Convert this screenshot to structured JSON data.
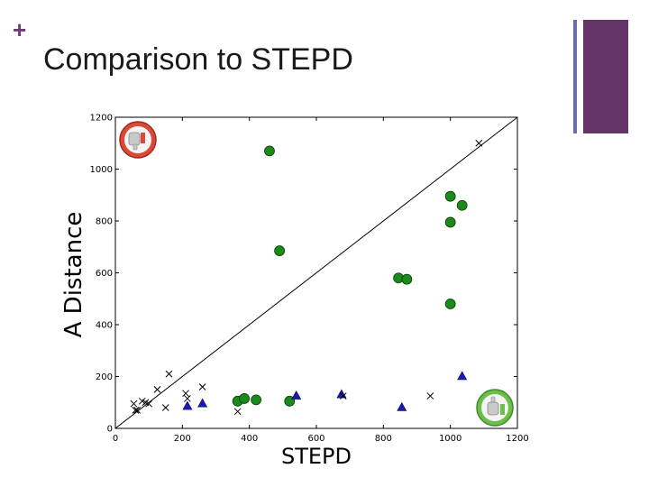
{
  "slide": {
    "plus_sign": "+",
    "title": "Comparison to STEPD"
  },
  "colors": {
    "accent_purple": "#643466",
    "accent_blue": "#6b6fa8",
    "green": "#1a8a1a",
    "blue": "#1a1ab4",
    "thumbs_down_badge": "#d94a38",
    "thumbs_up_badge": "#6cc04a"
  },
  "icons": {
    "top_left": "thumbs-down-icon",
    "bottom_right": "thumbs-up-icon"
  },
  "chart_data": {
    "type": "scatter",
    "xlabel": "STEPD",
    "ylabel": "A Distance",
    "xlim": [
      0,
      1200
    ],
    "ylim": [
      0,
      1200
    ],
    "xticks": [
      0,
      200,
      400,
      600,
      800,
      1000,
      1200
    ],
    "yticks": [
      0,
      200,
      400,
      600,
      800,
      1000,
      1200
    ],
    "grid": false,
    "diagonal_line": true,
    "series": [
      {
        "marker": "circle",
        "color": "#1a8a1a",
        "points": [
          [
            460,
            1070
          ],
          [
            490,
            685
          ],
          [
            845,
            580
          ],
          [
            870,
            575
          ],
          [
            1000,
            895
          ],
          [
            1035,
            860
          ],
          [
            1000,
            795
          ],
          [
            1000,
            480
          ],
          [
            365,
            105
          ],
          [
            385,
            115
          ],
          [
            420,
            110
          ],
          [
            520,
            105
          ]
        ]
      },
      {
        "marker": "triangle",
        "color": "#1a1ab4",
        "points": [
          [
            215,
            85
          ],
          [
            260,
            95
          ],
          [
            540,
            125
          ],
          [
            675,
            130
          ],
          [
            855,
            80
          ],
          [
            1035,
            200
          ]
        ]
      },
      {
        "marker": "x",
        "color": "#000000",
        "points": [
          [
            55,
            95
          ],
          [
            60,
            70
          ],
          [
            65,
            70
          ],
          [
            80,
            105
          ],
          [
            90,
            100
          ],
          [
            100,
            95
          ],
          [
            125,
            150
          ],
          [
            150,
            80
          ],
          [
            160,
            210
          ],
          [
            210,
            135
          ],
          [
            215,
            115
          ],
          [
            260,
            160
          ],
          [
            365,
            65
          ],
          [
            680,
            125
          ],
          [
            940,
            125
          ],
          [
            1085,
            1100
          ]
        ]
      }
    ]
  }
}
